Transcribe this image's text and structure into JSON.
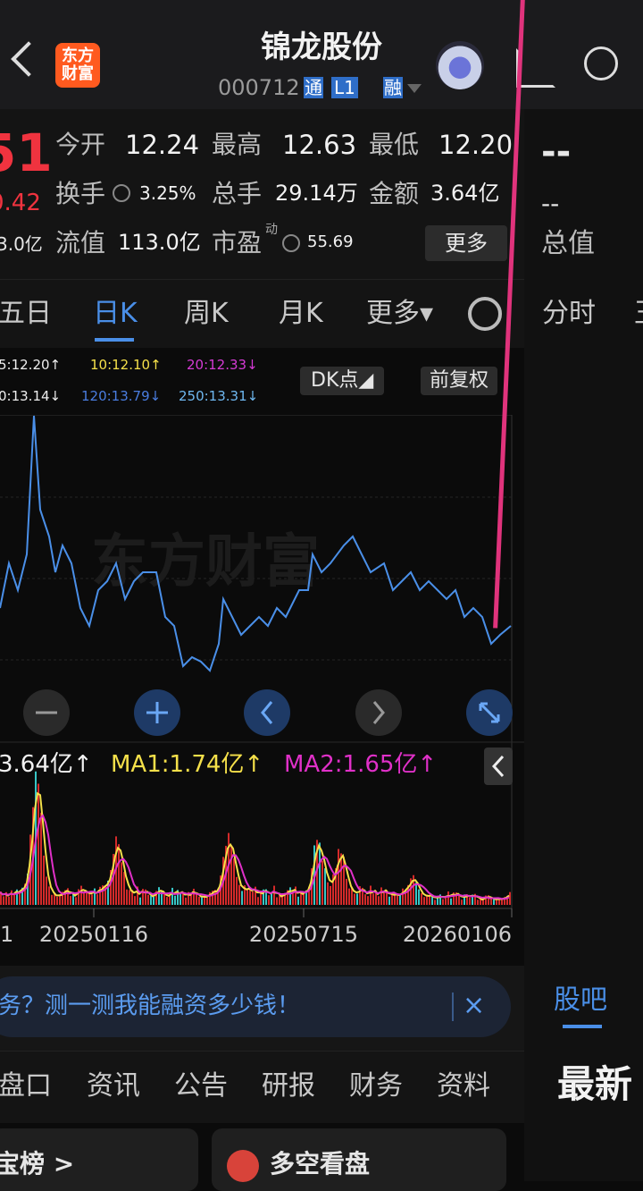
{
  "header": {
    "logo": "东方财富",
    "title": "锦龙股份",
    "code": "000712",
    "badges": [
      "通",
      "L1",
      "融"
    ]
  },
  "quote": {
    "price_partial": "51",
    "change_partial": "0.42",
    "cap_partial": "3.0亿",
    "fields": [
      {
        "label": "今开",
        "value": "12.24"
      },
      {
        "label": "最高",
        "value": "12.63"
      },
      {
        "label": "最低",
        "value": "12.20"
      },
      {
        "label": "换手",
        "value": "3.25%"
      },
      {
        "label": "总手",
        "value": "29.14万"
      },
      {
        "label": "金额",
        "value": "3.64亿"
      },
      {
        "label": "流值",
        "value": "113.0亿"
      },
      {
        "label": "市盈",
        "note": "动",
        "value": "55.69"
      }
    ],
    "more": "更多"
  },
  "side": {
    "price": "--",
    "change": "--",
    "label": "总值",
    "tab": "分时",
    "tab_partial": "王"
  },
  "tabs": [
    "五日",
    "日K",
    "周K",
    "月K",
    "更多▾"
  ],
  "ma": [
    "5:12.20↑",
    "10:12.10↑",
    "20:12.33↓",
    "0:13.14↓",
    "120:13.79↓",
    "250:13.31↓"
  ],
  "buttons": [
    "DK点◢",
    "前复权"
  ],
  "watermark": "东方财富",
  "volume": {
    "total": "3.64亿↑",
    "ma1": "MA1:1.74亿↑",
    "ma2": "MA2:1.65亿↑"
  },
  "dates": [
    "1",
    "20250116",
    "20250715",
    "20260106"
  ],
  "banner": "务？测一测我能融资多少钱！",
  "bottom_tabs": [
    "盘口",
    "资讯",
    "公告",
    "研报",
    "财务",
    "资料"
  ],
  "side_bottom": {
    "tab": "股吧",
    "heading": "最新"
  },
  "cards": [
    "宝榜 >",
    "多空看盘"
  ]
}
